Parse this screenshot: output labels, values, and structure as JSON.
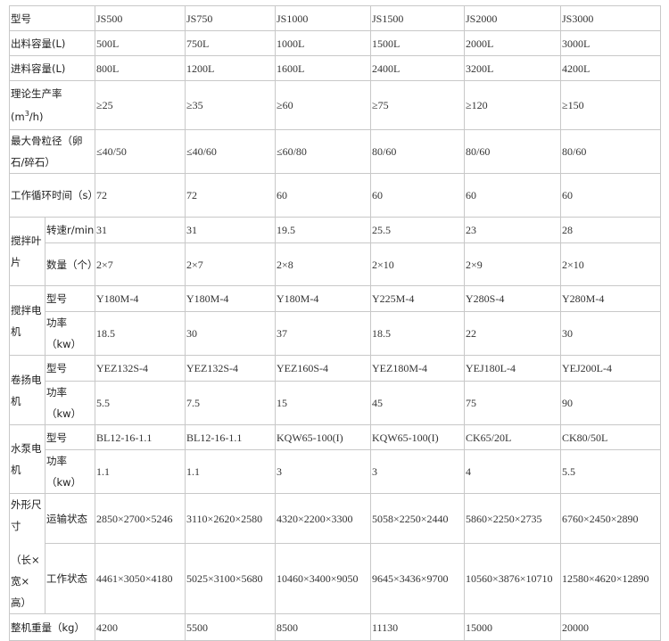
{
  "models": [
    "JS500",
    "JS750",
    "JS1000",
    "JS1500",
    "JS2000",
    "JS3000"
  ],
  "rows": [
    {
      "label": "型号",
      "values": [
        "JS500",
        "JS750",
        "JS1000",
        "JS1500",
        "JS2000",
        "JS3000"
      ]
    },
    {
      "label": "出料容量(L)",
      "values": [
        "500L",
        "750L",
        "1000L",
        "1500L",
        "2000L",
        "3000L"
      ]
    },
    {
      "label": "进料容量(L)",
      "values": [
        "800L",
        "1200L",
        "1600L",
        "2400L",
        "3200L",
        "4200L"
      ]
    },
    {
      "label": "理论生产率",
      "unit_pre": "(m",
      "unit_sup": "3",
      "unit_post": "/h)",
      "values": [
        "≥25",
        "≥35",
        "≥60",
        "≥75",
        "≥120",
        "≥150"
      ]
    },
    {
      "label": "最大骨粒径（卵石/碎石）",
      "values": [
        "≤40/50",
        "≤40/60",
        "≤60/80",
        "80/60",
        "80/60",
        "80/60"
      ]
    },
    {
      "label": "工作循环时间（s）",
      "values": [
        "72",
        "72",
        "60",
        "60",
        "60",
        "60"
      ]
    }
  ],
  "groups": [
    {
      "label": "搅拌叶片",
      "sub": [
        {
          "label": "转速r/min",
          "values": [
            "31",
            "31",
            "19.5",
            "25.5",
            "23",
            "28"
          ]
        },
        {
          "label": "数量（个）",
          "values": [
            "2×7",
            "2×7",
            "2×8",
            "2×10",
            "2×9",
            "2×10"
          ]
        }
      ]
    },
    {
      "label": "搅拌电机",
      "sub": [
        {
          "label": "型号",
          "values": [
            "Y180M-4",
            "Y180M-4",
            "Y180M-4",
            "Y225M-4",
            "Y280S-4",
            "Y280M-4"
          ]
        },
        {
          "label": "功率（kw）",
          "values": [
            "18.5",
            "30",
            "37",
            "18.5",
            "22",
            "30"
          ]
        }
      ]
    },
    {
      "label": "卷扬电机",
      "sub": [
        {
          "label": "型号",
          "values": [
            "YEZ132S-4",
            "YEZ132S-4",
            "YEZ160S-4",
            "YEZ180M-4",
            "YEJ180L-4",
            "YEJ200L-4"
          ]
        },
        {
          "label": "功率（kw）",
          "values": [
            "5.5",
            "7.5",
            "15",
            "45",
            "75",
            "90"
          ]
        }
      ]
    },
    {
      "label": "水泵电机",
      "sub": [
        {
          "label": "型号",
          "values": [
            "BL12-16-1.1",
            "BL12-16-1.1",
            "KQW65-100(I)",
            "KQW65-100(I)",
            "CK65/20L",
            "CK80/50L"
          ]
        },
        {
          "label": "功率（kw）",
          "values": [
            "1.1",
            "1.1",
            "3",
            "3",
            "4",
            "5.5"
          ]
        }
      ]
    }
  ],
  "dimensions": {
    "label_top": "外形尺寸",
    "label_bottom": "（长×宽×高）",
    "sub": [
      {
        "label": "运输状态",
        "values": [
          "2850×2700×5246",
          "3110×2620×2580",
          "4320×2200×3300",
          "5058×2250×2440",
          "5860×2250×2735",
          "6760×2450×2890"
        ]
      },
      {
        "label": "工作状态",
        "values": [
          "4461×3050×4180",
          "5025×3100×5680",
          "10460×3400×9050",
          "9645×3436×9700",
          "10560×3876×10710",
          "12580×4620×12890"
        ]
      }
    ]
  },
  "weight": {
    "label": "整机重量（kg）",
    "values": [
      "4200",
      "5500",
      "8500",
      "11130",
      "15000",
      "20000"
    ]
  }
}
